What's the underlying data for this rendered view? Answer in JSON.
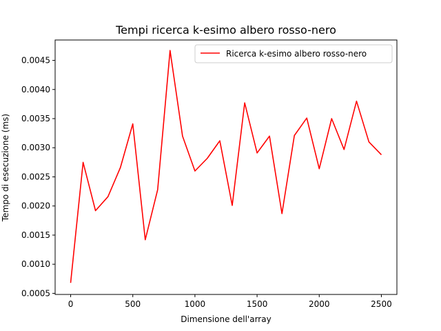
{
  "chart_data": {
    "type": "line",
    "title": "Tempi ricerca k-esimo albero rosso-nero",
    "xlabel": "Dimensione dell'array",
    "ylabel": "Tempo di esecuzione (ms)",
    "xlim": [
      -125,
      2625
    ],
    "ylim": [
      0.000481,
      0.00485
    ],
    "x_ticks": [
      0,
      500,
      1000,
      1500,
      2000,
      2500
    ],
    "x_tick_labels": [
      "0",
      "500",
      "1000",
      "1500",
      "2000",
      "2500"
    ],
    "y_ticks": [
      0.0005,
      0.001,
      0.0015,
      0.002,
      0.0025,
      0.003,
      0.0035,
      0.004,
      0.0045
    ],
    "y_tick_labels": [
      "0.0005",
      "0.0010",
      "0.0015",
      "0.0020",
      "0.0025",
      "0.0030",
      "0.0035",
      "0.0040",
      "0.0045"
    ],
    "grid": false,
    "legend_position": "top-right",
    "series": [
      {
        "name": "Ricerca k-esimo albero rosso-nero",
        "color": "#ff0000",
        "x": [
          0,
          100,
          200,
          300,
          400,
          500,
          600,
          700,
          800,
          900,
          1000,
          1100,
          1200,
          1300,
          1400,
          1500,
          1600,
          1700,
          1800,
          1900,
          2000,
          2100,
          2200,
          2300,
          2400,
          2500
        ],
        "y": [
          0.00068,
          0.00275,
          0.00192,
          0.00216,
          0.00266,
          0.00341,
          0.00142,
          0.00228,
          0.00467,
          0.0032,
          0.0026,
          0.00282,
          0.00312,
          0.00201,
          0.00377,
          0.00291,
          0.0032,
          0.00187,
          0.00321,
          0.00351,
          0.00264,
          0.0035,
          0.00297,
          0.0038,
          0.0031,
          0.00288
        ]
      }
    ]
  }
}
